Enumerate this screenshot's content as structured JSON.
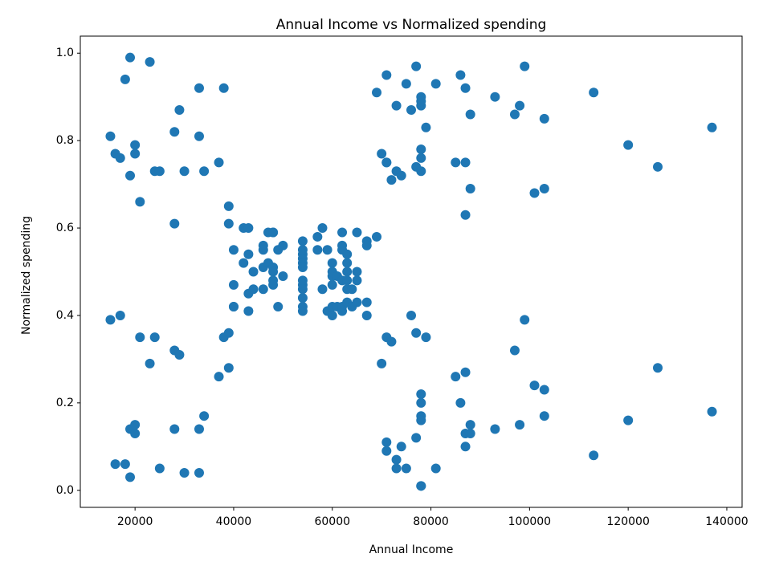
{
  "chart_data": {
    "type": "scatter",
    "title": "Annual Income vs Normalized spending",
    "x_label": "Annual Income",
    "y_label": "Normalized spending",
    "color": "#1f77b4",
    "xlim": [
      8900,
      143100
    ],
    "ylim": [
      -0.039,
      1.039
    ],
    "xticks": [
      20000,
      40000,
      60000,
      80000,
      100000,
      120000,
      140000
    ],
    "yticks": [
      {
        "value": 0,
        "label": "0.0"
      },
      0.2,
      0.4,
      0.6,
      0.8,
      {
        "value": 1,
        "label": "1.0"
      }
    ],
    "x": [
      15000,
      15000,
      16000,
      16000,
      17000,
      17000,
      18000,
      18000,
      19000,
      19000,
      19000,
      19000,
      20000,
      20000,
      20000,
      20000,
      21000,
      21000,
      23000,
      23000,
      24000,
      24000,
      25000,
      25000,
      28000,
      28000,
      28000,
      28000,
      29000,
      29000,
      30000,
      30000,
      33000,
      33000,
      33000,
      33000,
      34000,
      34000,
      37000,
      37000,
      38000,
      38000,
      39000,
      39000,
      39000,
      39000,
      40000,
      40000,
      40000,
      40000,
      42000,
      42000,
      43000,
      43000,
      43000,
      43000,
      44000,
      44000,
      46000,
      46000,
      46000,
      46000,
      47000,
      47000,
      48000,
      48000,
      48000,
      48000,
      48000,
      48000,
      49000,
      49000,
      50000,
      50000,
      54000,
      54000,
      54000,
      54000,
      54000,
      54000,
      54000,
      54000,
      54000,
      54000,
      54000,
      54000,
      57000,
      57000,
      58000,
      58000,
      59000,
      59000,
      60000,
      60000,
      60000,
      60000,
      60000,
      60000,
      61000,
      61000,
      62000,
      62000,
      62000,
      62000,
      62000,
      62000,
      63000,
      63000,
      63000,
      63000,
      63000,
      63000,
      64000,
      64000,
      65000,
      65000,
      65000,
      65000,
      67000,
      67000,
      67000,
      67000,
      69000,
      69000,
      70000,
      70000,
      71000,
      71000,
      71000,
      71000,
      71000,
      71000,
      72000,
      72000,
      73000,
      73000,
      73000,
      73000,
      74000,
      74000,
      75000,
      75000,
      76000,
      76000,
      77000,
      77000,
      77000,
      77000,
      78000,
      78000,
      78000,
      78000,
      78000,
      78000,
      78000,
      78000,
      78000,
      78000,
      78000,
      78000,
      79000,
      79000,
      81000,
      81000,
      85000,
      85000,
      86000,
      86000,
      87000,
      87000,
      87000,
      87000,
      87000,
      87000,
      88000,
      88000,
      88000,
      88000,
      93000,
      93000,
      97000,
      97000,
      98000,
      98000,
      99000,
      99000,
      101000,
      101000,
      103000,
      103000,
      103000,
      103000,
      113000,
      113000,
      120000,
      120000,
      126000,
      126000,
      137000,
      137000
    ],
    "values": [
      0.39,
      0.81,
      0.06,
      0.77,
      0.4,
      0.76,
      0.06,
      0.94,
      0.03,
      0.72,
      0.14,
      0.99,
      0.15,
      0.77,
      0.13,
      0.79,
      0.35,
      0.66,
      0.29,
      0.98,
      0.35,
      0.73,
      0.05,
      0.73,
      0.14,
      0.82,
      0.32,
      0.61,
      0.31,
      0.87,
      0.04,
      0.73,
      0.04,
      0.92,
      0.14,
      0.81,
      0.17,
      0.73,
      0.26,
      0.75,
      0.35,
      0.92,
      0.36,
      0.61,
      0.28,
      0.65,
      0.55,
      0.47,
      0.42,
      0.42,
      0.52,
      0.6,
      0.54,
      0.6,
      0.45,
      0.41,
      0.5,
      0.46,
      0.51,
      0.46,
      0.56,
      0.55,
      0.52,
      0.59,
      0.51,
      0.59,
      0.5,
      0.48,
      0.59,
      0.47,
      0.55,
      0.42,
      0.49,
      0.56,
      0.47,
      0.54,
      0.53,
      0.48,
      0.52,
      0.42,
      0.51,
      0.55,
      0.41,
      0.44,
      0.57,
      0.46,
      0.58,
      0.55,
      0.6,
      0.46,
      0.55,
      0.41,
      0.49,
      0.4,
      0.42,
      0.52,
      0.47,
      0.5,
      0.42,
      0.49,
      0.41,
      0.48,
      0.59,
      0.55,
      0.56,
      0.42,
      0.5,
      0.46,
      0.43,
      0.48,
      0.52,
      0.54,
      0.42,
      0.46,
      0.48,
      0.5,
      0.43,
      0.59,
      0.43,
      0.57,
      0.56,
      0.4,
      0.58,
      0.91,
      0.29,
      0.77,
      0.35,
      0.95,
      0.11,
      0.75,
      0.09,
      0.75,
      0.34,
      0.71,
      0.05,
      0.88,
      0.07,
      0.73,
      0.1,
      0.72,
      0.05,
      0.93,
      0.4,
      0.87,
      0.12,
      0.97,
      0.36,
      0.74,
      0.22,
      0.9,
      0.17,
      0.88,
      0.2,
      0.76,
      0.16,
      0.89,
      0.01,
      0.78,
      0.01,
      0.73,
      0.35,
      0.83,
      0.05,
      0.93,
      0.26,
      0.75,
      0.2,
      0.95,
      0.27,
      0.63,
      0.13,
      0.75,
      0.1,
      0.92,
      0.13,
      0.86,
      0.15,
      0.69,
      0.14,
      0.9,
      0.32,
      0.86,
      0.15,
      0.88,
      0.39,
      0.97,
      0.24,
      0.68,
      0.17,
      0.85,
      0.23,
      0.69,
      0.08,
      0.91,
      0.16,
      0.79,
      0.28,
      0.74,
      0.18,
      0.83
    ]
  }
}
